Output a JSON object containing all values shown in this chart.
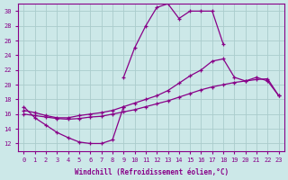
{
  "xlabel": "Windchill (Refroidissement éolien,°C)",
  "bg_color": "#cce8e8",
  "grid_color": "#aacccc",
  "line_color": "#880088",
  "xlim": [
    -0.5,
    23.5
  ],
  "ylim": [
    11,
    31
  ],
  "xticks": [
    0,
    1,
    2,
    3,
    4,
    5,
    6,
    7,
    8,
    9,
    10,
    11,
    12,
    13,
    14,
    15,
    16,
    17,
    18,
    19,
    20,
    21,
    22,
    23
  ],
  "yticks": [
    12,
    14,
    16,
    18,
    20,
    22,
    24,
    26,
    28,
    30
  ],
  "line1_x": [
    0,
    1,
    2,
    3,
    4,
    5,
    6,
    7,
    8,
    9
  ],
  "line1_y": [
    17,
    15.5,
    14.5,
    13.5,
    12.8,
    12.2,
    12.0,
    12.0,
    12.5,
    17.0
  ],
  "line2_x": [
    9,
    10,
    11,
    12,
    13,
    14,
    15,
    16,
    17,
    18
  ],
  "line2_y": [
    21.0,
    25.0,
    28.0,
    30.5,
    31.0,
    29.0,
    30.0,
    30.0,
    30.0,
    25.5
  ],
  "line3_x": [
    0,
    1,
    2,
    3,
    4,
    5,
    6,
    7,
    8,
    9,
    10,
    11,
    12,
    13,
    14,
    15,
    16,
    17,
    18,
    19,
    20,
    21,
    22,
    23
  ],
  "line3_y": [
    16.5,
    16.2,
    15.8,
    15.5,
    15.5,
    15.8,
    16.0,
    16.2,
    16.5,
    17.0,
    17.5,
    18.0,
    18.5,
    19.2,
    20.2,
    21.2,
    22.0,
    23.2,
    23.5,
    21.0,
    20.5,
    21.0,
    20.5,
    18.5
  ],
  "line4_x": [
    0,
    1,
    2,
    3,
    4,
    5,
    6,
    7,
    8,
    9,
    10,
    11,
    12,
    13,
    14,
    15,
    16,
    17,
    18,
    19,
    20,
    21,
    22,
    23
  ],
  "line4_y": [
    16.0,
    15.8,
    15.6,
    15.4,
    15.3,
    15.4,
    15.6,
    15.7,
    16.0,
    16.3,
    16.6,
    17.0,
    17.4,
    17.8,
    18.3,
    18.8,
    19.3,
    19.7,
    20.0,
    20.3,
    20.5,
    20.7,
    20.8,
    18.5
  ]
}
